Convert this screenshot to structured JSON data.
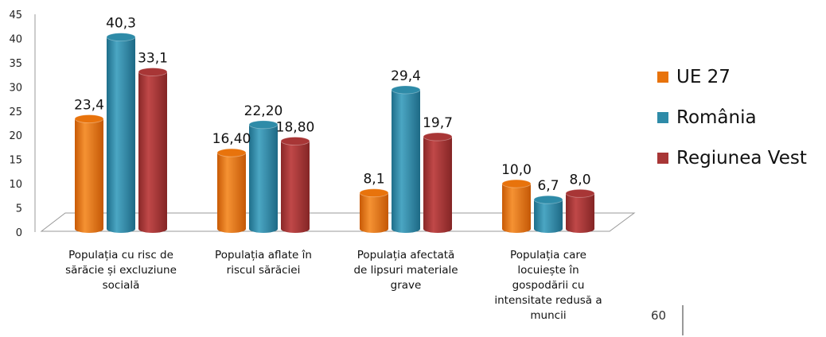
{
  "chart_data": {
    "type": "bar",
    "categories": [
      [
        "Populația cu risc de",
        "sărăcie și excluziune",
        "socială"
      ],
      [
        "Populația aflate în",
        "riscul sărăciei"
      ],
      [
        "Populația afectată",
        "de lipsuri materiale",
        "grave"
      ],
      [
        "Populația care",
        "locuiește în",
        "gospodării cu",
        "intensitate redusă a",
        "muncii"
      ]
    ],
    "series": [
      {
        "name": "UE 27",
        "color": "#E8730C",
        "values": [
          23.4,
          16.4,
          8.1,
          10.0
        ],
        "labels": [
          "23,4",
          "16,40",
          "8,1",
          "10,0"
        ]
      },
      {
        "name": "România",
        "color": "#2E8BA8",
        "values": [
          40.3,
          22.2,
          29.4,
          6.7
        ],
        "labels": [
          "40,3",
          "22,20",
          "29,4",
          "6,7"
        ]
      },
      {
        "name": "Regiunea Vest",
        "color": "#A83636",
        "values": [
          33.1,
          18.8,
          19.7,
          8.0
        ],
        "labels": [
          "33,1",
          "18,80",
          "19,7",
          "8,0"
        ]
      }
    ],
    "yticks": [
      "0",
      "5",
      "10",
      "15",
      "20",
      "25",
      "30",
      "35",
      "40",
      "45"
    ],
    "ylim": [
      0,
      45
    ],
    "legend_position": "right",
    "grid": false
  },
  "page_number": "60"
}
